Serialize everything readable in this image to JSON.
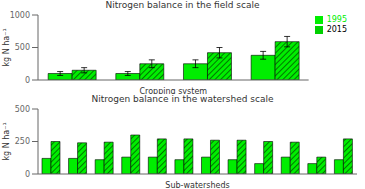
{
  "chart_data": [
    {
      "type": "bar",
      "title": "Nitrogen balance in the field scale",
      "xlabel": "Cropping system",
      "ylabel": "kg N ha⁻¹",
      "categories": [
        null,
        null,
        null,
        null
      ],
      "series": [
        {
          "name": "1995",
          "color": "#00ee00",
          "values": [
            100,
            100,
            250,
            380
          ],
          "error": [
            30,
            30,
            60,
            60
          ]
        },
        {
          "name": "2015",
          "color": "#00ee00",
          "values": [
            150,
            250,
            420,
            590
          ],
          "error": [
            40,
            60,
            80,
            80
          ]
        }
      ],
      "ylim": [
        0,
        1000
      ],
      "yticks": [
        0,
        500,
        1000
      ],
      "grid": false,
      "legend": "upper right",
      "tick_labels": "y"
    },
    {
      "type": "bar",
      "title": "Nitrogen balance in the watershed scale",
      "xlabel": "Sub-watersheds",
      "ylabel": "kg N ha⁻¹",
      "categories": [
        null,
        null,
        null,
        null,
        null,
        null,
        null,
        null,
        null,
        null,
        null,
        null
      ],
      "series": [
        {
          "name": "1995",
          "color": "#00ee00",
          "values": [
            120,
            120,
            110,
            130,
            130,
            110,
            130,
            110,
            80,
            130,
            80,
            110
          ]
        },
        {
          "name": "2015",
          "color": "#00ee00",
          "values": [
            250,
            240,
            245,
            300,
            270,
            270,
            260,
            260,
            250,
            245,
            130,
            270
          ]
        }
      ],
      "ylim": [
        0,
        500
      ],
      "yticks": [
        0,
        250,
        500
      ],
      "grid": false,
      "tick_labels": "y"
    }
  ]
}
